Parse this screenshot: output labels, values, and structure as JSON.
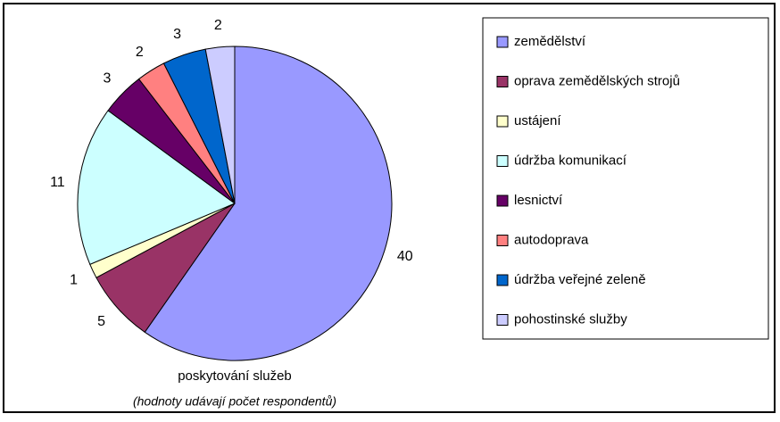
{
  "chart_data": {
    "type": "pie",
    "title": "poskytování služeb",
    "subtitle": "(hodnoty udávají počet respondentů)",
    "categories": [
      "zemědělství",
      "oprava zemědělských strojů",
      "ustájení",
      "údržba komunikací",
      "lesnictví",
      "autodoprava",
      "údržba veřejné zeleně",
      "pohostinské služby"
    ],
    "values": [
      40,
      5,
      1,
      11,
      3,
      2,
      3,
      2
    ],
    "colors": [
      "#9999ff",
      "#993366",
      "#ffffcc",
      "#ccffff",
      "#660066",
      "#ff8080",
      "#0066cc",
      "#ccccff"
    ],
    "legend": "right"
  }
}
